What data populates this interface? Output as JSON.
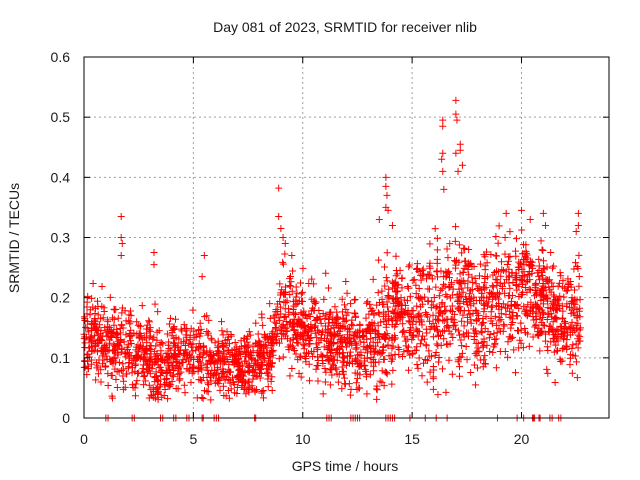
{
  "chart_data": {
    "type": "scatter",
    "title": "Day 081 of 2023, SRMTID for receiver nlib",
    "xlabel": "GPS time / hours",
    "ylabel": "SRMTID / TECUs",
    "xlim": [
      0,
      24
    ],
    "ylim": [
      0,
      0.6
    ],
    "xticks": [
      0,
      5,
      10,
      15,
      20
    ],
    "xtick_labels": [
      "0",
      "5",
      "10",
      "15",
      "20"
    ],
    "yticks": [
      0,
      0.1,
      0.2,
      0.3,
      0.4,
      0.5,
      0.6
    ],
    "ytick_labels": [
      "0",
      "0.1",
      "0.2",
      "0.3",
      "0.4",
      "0.5",
      "0.6"
    ],
    "grid": true,
    "legend": "none",
    "marker": "+",
    "series": [
      {
        "name": "SRMTID",
        "color": "#ff0000",
        "envelope_hours": [
          0,
          0.5,
          1,
          1.5,
          2,
          2.5,
          3,
          3.5,
          4,
          4.5,
          5,
          5.5,
          6,
          6.5,
          7,
          7.5,
          8,
          8.5,
          9,
          9.5,
          10,
          10.5,
          11,
          11.5,
          12,
          12.5,
          13,
          13.5,
          14,
          14.5,
          15,
          15.5,
          16,
          16.5,
          17,
          17.5,
          18,
          18.5,
          19,
          19.5,
          20,
          20.5,
          21,
          21.5,
          22,
          22.5
        ],
        "envelope_median": [
          0.13,
          0.14,
          0.12,
          0.12,
          0.11,
          0.1,
          0.1,
          0.09,
          0.1,
          0.1,
          0.11,
          0.1,
          0.09,
          0.09,
          0.08,
          0.09,
          0.1,
          0.11,
          0.18,
          0.17,
          0.15,
          0.14,
          0.13,
          0.13,
          0.13,
          0.12,
          0.12,
          0.15,
          0.17,
          0.17,
          0.17,
          0.17,
          0.17,
          0.18,
          0.2,
          0.19,
          0.17,
          0.18,
          0.2,
          0.2,
          0.21,
          0.21,
          0.19,
          0.17,
          0.16,
          0.16
        ],
        "envelope_spread": [
          0.04,
          0.04,
          0.04,
          0.04,
          0.04,
          0.04,
          0.04,
          0.04,
          0.035,
          0.04,
          0.04,
          0.04,
          0.035,
          0.035,
          0.03,
          0.035,
          0.04,
          0.04,
          0.05,
          0.05,
          0.045,
          0.045,
          0.045,
          0.04,
          0.045,
          0.045,
          0.045,
          0.06,
          0.06,
          0.055,
          0.055,
          0.06,
          0.07,
          0.07,
          0.07,
          0.06,
          0.06,
          0.06,
          0.06,
          0.06,
          0.06,
          0.06,
          0.055,
          0.055,
          0.05,
          0.05
        ],
        "peaks": [
          [
            1.7,
            0.335
          ],
          [
            1.7,
            0.3
          ],
          [
            1.75,
            0.29
          ],
          [
            1.7,
            0.27
          ],
          [
            3.2,
            0.275
          ],
          [
            3.2,
            0.255
          ],
          [
            5.5,
            0.27
          ],
          [
            5.4,
            0.235
          ],
          [
            8.9,
            0.382
          ],
          [
            8.9,
            0.335
          ],
          [
            9.0,
            0.315
          ],
          [
            9.1,
            0.3
          ],
          [
            9.2,
            0.29
          ],
          [
            9.5,
            0.27
          ],
          [
            13.8,
            0.4
          ],
          [
            13.8,
            0.385
          ],
          [
            13.85,
            0.37
          ],
          [
            13.8,
            0.35
          ],
          [
            13.9,
            0.345
          ],
          [
            14.1,
            0.32
          ],
          [
            13.5,
            0.33
          ],
          [
            16.4,
            0.495
          ],
          [
            16.4,
            0.485
          ],
          [
            16.4,
            0.44
          ],
          [
            16.35,
            0.43
          ],
          [
            16.4,
            0.41
          ],
          [
            16.45,
            0.38
          ],
          [
            17.0,
            0.528
          ],
          [
            17.0,
            0.505
          ],
          [
            17.05,
            0.495
          ],
          [
            17.0,
            0.44
          ],
          [
            17.2,
            0.455
          ],
          [
            17.2,
            0.445
          ],
          [
            17.1,
            0.41
          ],
          [
            17.3,
            0.42
          ],
          [
            19.3,
            0.34
          ],
          [
            20.0,
            0.345
          ],
          [
            20.4,
            0.33
          ],
          [
            21.0,
            0.34
          ],
          [
            21.1,
            0.32
          ],
          [
            22.6,
            0.34
          ],
          [
            22.6,
            0.32
          ],
          [
            22.5,
            0.31
          ]
        ],
        "zero_points": [
          1.0,
          1.1,
          2.2,
          2.3,
          3.5,
          3.6,
          4.1,
          4.2,
          4.7,
          4.8,
          5.0,
          5.4,
          5.45,
          5.95,
          6.05,
          6.15,
          7.8,
          7.85,
          11.1,
          11.2,
          11.3,
          12.2,
          12.3,
          12.4,
          12.5,
          12.6,
          13.8,
          13.9,
          14.0,
          14.1,
          14.2,
          14.9,
          15.6,
          16.1,
          16.6,
          18.9,
          19.8,
          20.1,
          20.5,
          20.55,
          20.6,
          20.8,
          20.85,
          21.3,
          21.4,
          21.7,
          21.8
        ],
        "x_range_of_points": [
          0,
          22.7
        ],
        "approx_point_count": 2600
      }
    ]
  }
}
